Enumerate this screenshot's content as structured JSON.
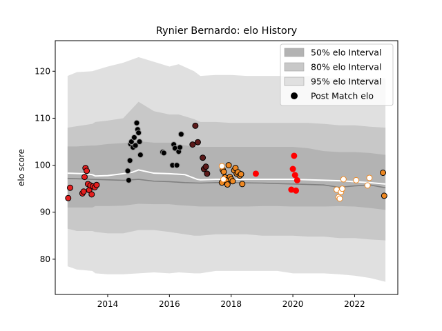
{
  "chart_data": {
    "type": "scatter",
    "title": "Rynier Bernardo: elo History",
    "xlabel": "",
    "ylabel": "elo score",
    "xlim": [
      2012.3,
      2023.4
    ],
    "ylim": [
      72.5,
      126.5
    ],
    "xticks": [
      2014,
      2016,
      2018,
      2020,
      2022
    ],
    "yticks": [
      80,
      90,
      100,
      110,
      120
    ],
    "grid": false,
    "legend_placement": "top-right",
    "legend": [
      {
        "label": "50% elo Interval",
        "kind": "band",
        "color": "#b3b3b3"
      },
      {
        "label": "80% elo Interval",
        "kind": "band",
        "color": "#c8c8c8"
      },
      {
        "label": "95% elo Interval",
        "kind": "band",
        "color": "#e0e0e0"
      },
      {
        "label": "Post Match elo",
        "kind": "marker",
        "color": "#000000"
      }
    ],
    "bands": {
      "x": [
        2012.7,
        2013.0,
        2013.5,
        2013.6,
        2014.0,
        2014.5,
        2015.0,
        2015.5,
        2016.0,
        2016.3,
        2016.8,
        2017.0,
        2017.5,
        2018.0,
        2018.5,
        2019.0,
        2019.5,
        2020.0,
        2020.5,
        2021.0,
        2021.5,
        2022.0,
        2022.5,
        2023.0
      ],
      "p50_low": [
        91.0,
        91.0,
        91.0,
        91.3,
        91.3,
        91.4,
        91.8,
        91.7,
        91.7,
        91.5,
        91.3,
        91.2,
        91.2,
        91.2,
        91.2,
        91.3,
        91.3,
        91.2,
        91.2,
        91.2,
        91.3,
        91.2,
        90.9,
        90.5
      ],
      "p50_high": [
        104.0,
        104.0,
        104.2,
        104.2,
        104.5,
        104.7,
        105.1,
        104.8,
        104.8,
        104.4,
        104.0,
        103.9,
        103.9,
        103.9,
        103.9,
        103.9,
        103.9,
        103.9,
        103.6,
        103.0,
        102.8,
        102.8,
        102.6,
        102.2
      ],
      "p80_low": [
        86.5,
        86.0,
        86.0,
        85.8,
        85.5,
        85.5,
        86.2,
        86.2,
        85.8,
        85.5,
        85.0,
        85.0,
        85.3,
        85.3,
        85.3,
        85.0,
        85.0,
        85.0,
        84.8,
        84.8,
        84.5,
        84.5,
        84.2,
        84.0
      ],
      "p80_high": [
        108.0,
        108.3,
        108.8,
        109.2,
        109.5,
        110.0,
        113.5,
        111.5,
        110.8,
        110.8,
        109.8,
        109.2,
        109.2,
        109.0,
        109.0,
        109.0,
        109.0,
        109.0,
        109.0,
        108.8,
        108.5,
        108.5,
        108.2,
        108.0
      ],
      "p95_low": [
        78.5,
        77.8,
        77.5,
        77.0,
        76.8,
        76.8,
        77.0,
        77.2,
        77.0,
        77.2,
        77.0,
        77.0,
        77.5,
        77.5,
        77.5,
        77.5,
        77.5,
        77.0,
        77.0,
        77.0,
        76.8,
        76.5,
        76.0,
        75.2
      ],
      "p95_high": [
        119.0,
        119.8,
        120.0,
        120.2,
        121.0,
        121.8,
        123.0,
        122.0,
        121.0,
        121.5,
        120.0,
        119.0,
        119.2,
        119.2,
        119.0,
        119.0,
        119.0,
        119.0,
        119.0,
        118.5,
        118.5,
        118.5,
        118.5,
        118.5
      ]
    },
    "lines": [
      {
        "name": "median",
        "color": "#808080",
        "x": [
          2012.7,
          2013.5,
          2014.5,
          2015.0,
          2015.5,
          2016.0,
          2016.5,
          2017.0,
          2017.5,
          2018.0,
          2019.0,
          2020.0,
          2021.0,
          2021.5,
          2022.0,
          2022.5,
          2023.0
        ],
        "y": [
          97.2,
          97.0,
          96.8,
          97.0,
          96.6,
          96.5,
          96.3,
          96.2,
          96.3,
          96.3,
          96.2,
          96.0,
          95.8,
          95.3,
          95.6,
          95.8,
          95.2
        ]
      },
      {
        "name": "mean",
        "color": "#ffffff",
        "x": [
          2012.7,
          2013.2,
          2013.5,
          2013.6,
          2014.0,
          2014.5,
          2014.8,
          2015.0,
          2015.5,
          2016.0,
          2016.5,
          2016.9,
          2017.0,
          2017.5,
          2018.0,
          2019.0,
          2020.0,
          2021.0,
          2021.5,
          2022.0,
          2022.5,
          2023.0
        ],
        "y": [
          98.3,
          98.2,
          98.0,
          97.7,
          97.8,
          98.2,
          98.5,
          99.0,
          98.3,
          98.2,
          98.0,
          97.0,
          96.9,
          97.0,
          97.0,
          97.0,
          97.0,
          96.8,
          96.7,
          96.5,
          96.3,
          96.0
        ]
      }
    ],
    "series": [
      {
        "name": "",
        "fill": "#e52020",
        "edge": "#000000",
        "points": [
          [
            2012.72,
            93.0
          ],
          [
            2012.78,
            95.2
          ],
          [
            2013.18,
            94.0
          ],
          [
            2013.22,
            94.4
          ],
          [
            2013.25,
            97.5
          ],
          [
            2013.28,
            99.4
          ],
          [
            2013.32,
            98.8
          ],
          [
            2013.36,
            96.0
          ],
          [
            2013.4,
            94.7
          ],
          [
            2013.44,
            95.7
          ],
          [
            2013.48,
            93.8
          ],
          [
            2013.52,
            95.5
          ],
          [
            2013.58,
            95.3
          ],
          [
            2013.64,
            95.8
          ]
        ]
      },
      {
        "name": "",
        "fill": "#000000",
        "edge": "#999999",
        "points": [
          [
            2014.65,
            98.8
          ],
          [
            2014.68,
            96.8
          ],
          [
            2014.72,
            101.0
          ],
          [
            2014.74,
            104.5
          ],
          [
            2014.77,
            105.0
          ],
          [
            2014.82,
            103.8
          ],
          [
            2014.86,
            105.9
          ],
          [
            2014.9,
            104.2
          ],
          [
            2014.94,
            109.0
          ],
          [
            2014.97,
            107.6
          ],
          [
            2015.0,
            106.9
          ],
          [
            2015.03,
            105.0
          ],
          [
            2015.06,
            102.2
          ],
          [
            2015.78,
            102.8
          ],
          [
            2015.82,
            102.6
          ],
          [
            2016.1,
            100.0
          ],
          [
            2016.14,
            104.4
          ],
          [
            2016.18,
            103.6
          ],
          [
            2016.24,
            100.0
          ],
          [
            2016.3,
            102.9
          ],
          [
            2016.34,
            103.8
          ],
          [
            2016.38,
            106.6
          ]
        ]
      },
      {
        "name": "",
        "fill": "#5c1a1a",
        "edge": "#000000",
        "points": [
          [
            2016.75,
            104.4
          ],
          [
            2016.84,
            108.4
          ],
          [
            2016.92,
            104.9
          ],
          [
            2017.08,
            101.6
          ],
          [
            2017.12,
            99.2
          ],
          [
            2017.18,
            99.7
          ],
          [
            2017.22,
            98.2
          ]
        ]
      },
      {
        "name": "",
        "fill": "#ee8822",
        "edge": "#000000",
        "points": [
          [
            2017.7,
            96.3
          ],
          [
            2017.73,
            99.0
          ],
          [
            2017.76,
            98.6
          ],
          [
            2017.8,
            97.4
          ],
          [
            2017.84,
            96.8
          ],
          [
            2017.88,
            95.9
          ],
          [
            2017.92,
            100.0
          ],
          [
            2017.96,
            97.5
          ],
          [
            2018.0,
            97.0
          ],
          [
            2018.05,
            96.6
          ],
          [
            2018.1,
            98.9
          ],
          [
            2018.14,
            99.4
          ],
          [
            2018.18,
            98.2
          ],
          [
            2018.22,
            98.5
          ],
          [
            2018.28,
            97.8
          ],
          [
            2018.32,
            98.1
          ],
          [
            2018.36,
            96.0
          ]
        ]
      },
      {
        "name": "",
        "fill": "#ff0000",
        "edge": "#ff0000",
        "points": [
          [
            2018.8,
            98.2
          ],
          [
            2019.95,
            94.8
          ],
          [
            2020.0,
            99.2
          ],
          [
            2020.04,
            102.0
          ],
          [
            2020.07,
            97.9
          ],
          [
            2020.1,
            94.6
          ],
          [
            2020.14,
            96.8
          ]
        ]
      },
      {
        "name": "",
        "fill": "#ffffff",
        "edge": "#ee8822",
        "points": [
          [
            2017.7,
            99.8
          ],
          [
            2017.75,
            97.0
          ],
          [
            2021.42,
            94.8
          ],
          [
            2021.48,
            93.2
          ],
          [
            2021.52,
            92.9
          ],
          [
            2021.56,
            94.3
          ],
          [
            2021.6,
            95.0
          ],
          [
            2021.64,
            97.0
          ],
          [
            2022.05,
            96.8
          ],
          [
            2022.42,
            95.7
          ],
          [
            2022.48,
            97.3
          ]
        ]
      },
      {
        "name": "",
        "fill": "#ee8822",
        "edge": "#000000",
        "points": [
          [
            2022.92,
            98.4
          ],
          [
            2022.96,
            93.5
          ]
        ]
      }
    ]
  }
}
